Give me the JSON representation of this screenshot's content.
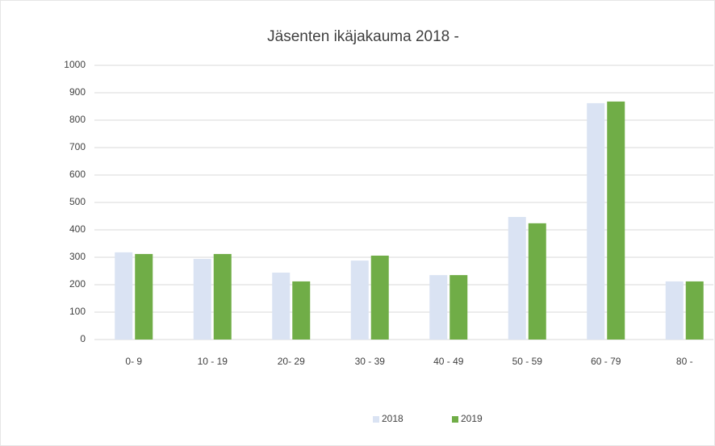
{
  "chart_data": {
    "type": "bar",
    "title": "Jäsenten ikäjakauma  2018 -",
    "categories": [
      "0- 9",
      "10 - 19",
      "20- 29",
      "30 - 39",
      "40 - 49",
      "50 - 59",
      "60 - 79",
      "80 -"
    ],
    "series": [
      {
        "name": "2018",
        "color": "#dae3f3",
        "values": [
          318,
          294,
          244,
          288,
          235,
          447,
          862,
          212
        ]
      },
      {
        "name": "2019",
        "color": "#70ad47",
        "values": [
          312,
          312,
          212,
          306,
          235,
          424,
          868,
          212
        ]
      }
    ],
    "ylim": [
      0,
      1000
    ],
    "yticks": [
      0,
      100,
      200,
      300,
      400,
      500,
      600,
      700,
      800,
      900,
      1000
    ],
    "grid": true,
    "legend": "bottom"
  }
}
